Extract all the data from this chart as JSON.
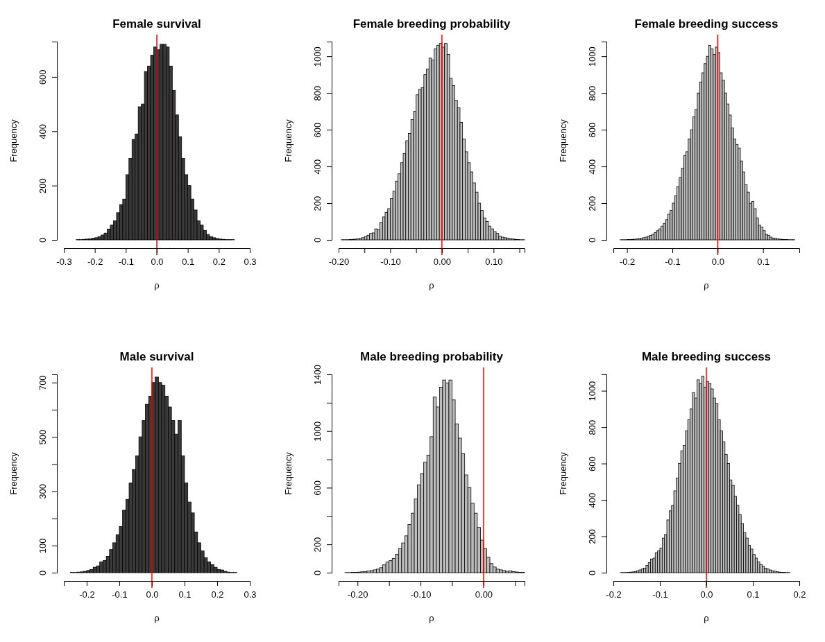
{
  "chart_data": [
    {
      "type": "histogram",
      "title": "Female survival",
      "xlabel": "ρ",
      "ylabel": "Frequency",
      "color": "#3a3a3a",
      "bins": [
        -0.28,
        -0.27,
        -0.26,
        -0.25,
        -0.24,
        -0.23,
        -0.22,
        -0.21,
        -0.2,
        -0.19,
        -0.18,
        -0.17,
        -0.16,
        -0.15,
        -0.14,
        -0.13,
        -0.12,
        -0.11,
        -0.1,
        -0.09,
        -0.08,
        -0.07,
        -0.06,
        -0.05,
        -0.04,
        -0.03,
        -0.02,
        -0.01,
        0,
        0.01,
        0.02,
        0.03,
        0.04,
        0.05,
        0.06,
        0.07,
        0.08,
        0.09,
        0.1,
        0.11,
        0.12,
        0.13,
        0.14,
        0.15,
        0.16,
        0.17,
        0.18,
        0.19,
        0.2,
        0.21,
        0.22,
        0.23,
        0.24,
        0.25,
        0.26,
        0.27,
        0.28,
        0.29,
        0.3
      ],
      "values": [
        0,
        0,
        1,
        1,
        2,
        3,
        4,
        6,
        8,
        12,
        18,
        25,
        40,
        55,
        70,
        100,
        130,
        150,
        240,
        300,
        370,
        390,
        490,
        500,
        620,
        640,
        680,
        710,
        700,
        720,
        720,
        710,
        640,
        550,
        460,
        380,
        300,
        240,
        200,
        150,
        110,
        70,
        55,
        35,
        20,
        12,
        8,
        5,
        3,
        2,
        1,
        1,
        1,
        0,
        0,
        0,
        0,
        0
      ],
      "xlim": [
        -0.3,
        0.3
      ],
      "xticks": [
        {
          "value": -0.3,
          "label": "-0.3"
        },
        {
          "value": -0.2,
          "label": "-0.2"
        },
        {
          "value": -0.1,
          "label": "-0.1"
        },
        {
          "value": 0,
          "label": "0.0"
        },
        {
          "value": 0.1,
          "label": "0.1"
        },
        {
          "value": 0.2,
          "label": "0.2"
        },
        {
          "value": 0.3,
          "label": "0.3"
        }
      ],
      "ylim": [
        0,
        730
      ],
      "yticks": [
        0,
        200,
        400,
        600
      ],
      "ref_lines": [
        {
          "axis": "x",
          "value": 0,
          "color": "#ff0000"
        }
      ]
    },
    {
      "type": "histogram",
      "title": "Female breeding probability",
      "xlabel": "ρ",
      "ylabel": "Frequency",
      "color": "#bdbdbd",
      "bins": [
        -0.195,
        -0.19,
        -0.185,
        -0.18,
        -0.175,
        -0.17,
        -0.165,
        -0.16,
        -0.155,
        -0.15,
        -0.145,
        -0.14,
        -0.135,
        -0.13,
        -0.125,
        -0.12,
        -0.115,
        -0.11,
        -0.105,
        -0.1,
        -0.095,
        -0.09,
        -0.085,
        -0.08,
        -0.075,
        -0.07,
        -0.065,
        -0.06,
        -0.055,
        -0.05,
        -0.045,
        -0.04,
        -0.035,
        -0.03,
        -0.025,
        -0.02,
        -0.015,
        -0.01,
        -0.005,
        0,
        0.005,
        0.01,
        0.015,
        0.02,
        0.025,
        0.03,
        0.035,
        0.04,
        0.045,
        0.05,
        0.055,
        0.06,
        0.065,
        0.07,
        0.075,
        0.08,
        0.085,
        0.09,
        0.095,
        0.1,
        0.105,
        0.11,
        0.115,
        0.12,
        0.125,
        0.13,
        0.135,
        0.14,
        0.145,
        0.15,
        0.155,
        0.16
      ],
      "values": [
        1,
        1,
        1,
        2,
        3,
        4,
        6,
        8,
        12,
        18,
        25,
        35,
        38,
        60,
        55,
        95,
        125,
        150,
        170,
        225,
        265,
        320,
        360,
        420,
        470,
        540,
        580,
        655,
        700,
        790,
        820,
        830,
        900,
        930,
        990,
        980,
        1040,
        1060,
        1070,
        1050,
        1070,
        1010,
        880,
        840,
        760,
        720,
        640,
        550,
        480,
        420,
        370,
        310,
        260,
        200,
        160,
        120,
        100,
        75,
        60,
        45,
        35,
        20,
        15,
        12,
        10,
        7,
        5,
        3,
        2,
        1,
        1
      ],
      "xlim": [
        -0.2,
        0.16
      ],
      "xticks": [
        {
          "value": -0.2,
          "label": "-0.20"
        },
        {
          "value": -0.15,
          "label": null
        },
        {
          "value": -0.1,
          "label": "-0.10"
        },
        {
          "value": -0.05,
          "label": null
        },
        {
          "value": 0,
          "label": "0.00"
        },
        {
          "value": 0.05,
          "label": null
        },
        {
          "value": 0.1,
          "label": "0.10"
        },
        {
          "value": 0.15,
          "label": null
        }
      ],
      "ylim": [
        0,
        1080
      ],
      "yticks": [
        0,
        200,
        400,
        600,
        800,
        1000
      ],
      "ref_lines": [
        {
          "axis": "x",
          "value": 0,
          "color": "#ff0000"
        }
      ]
    },
    {
      "type": "histogram",
      "title": "Female breeding success",
      "xlabel": "ρ",
      "ylabel": "Frequency",
      "color": "#bdbdbd",
      "bins": [
        -0.22,
        -0.215,
        -0.21,
        -0.205,
        -0.2,
        -0.195,
        -0.19,
        -0.185,
        -0.18,
        -0.175,
        -0.17,
        -0.165,
        -0.16,
        -0.155,
        -0.15,
        -0.145,
        -0.14,
        -0.135,
        -0.13,
        -0.125,
        -0.12,
        -0.115,
        -0.11,
        -0.105,
        -0.1,
        -0.095,
        -0.09,
        -0.085,
        -0.08,
        -0.075,
        -0.07,
        -0.065,
        -0.06,
        -0.055,
        -0.05,
        -0.045,
        -0.04,
        -0.035,
        -0.03,
        -0.025,
        -0.02,
        -0.015,
        -0.01,
        -0.005,
        0,
        0.005,
        0.01,
        0.015,
        0.02,
        0.025,
        0.03,
        0.035,
        0.04,
        0.045,
        0.05,
        0.055,
        0.06,
        0.065,
        0.07,
        0.075,
        0.08,
        0.085,
        0.09,
        0.095,
        0.1,
        0.105,
        0.11,
        0.115,
        0.12,
        0.125,
        0.13,
        0.135,
        0.14,
        0.145,
        0.15,
        0.155,
        0.16,
        0.165,
        0.17,
        0.175,
        0.18
      ],
      "values": [
        0,
        1,
        1,
        1,
        2,
        2,
        3,
        4,
        5,
        7,
        9,
        12,
        15,
        20,
        25,
        30,
        40,
        50,
        60,
        75,
        90,
        110,
        140,
        160,
        200,
        240,
        290,
        340,
        390,
        460,
        480,
        550,
        600,
        670,
        710,
        800,
        860,
        910,
        960,
        1000,
        1060,
        1040,
        1010,
        1050,
        1020,
        910,
        870,
        800,
        740,
        680,
        610,
        550,
        520,
        500,
        430,
        370,
        300,
        260,
        200,
        210,
        170,
        120,
        80,
        70,
        50,
        30,
        25,
        15,
        10,
        8,
        6,
        4,
        3,
        2,
        2,
        1,
        1,
        1,
        0,
        0
      ],
      "xlim": [
        -0.23,
        0.18
      ],
      "xticks": [
        {
          "value": -0.2,
          "label": "-0.2"
        },
        {
          "value": -0.1,
          "label": "-0.1"
        },
        {
          "value": 0,
          "label": "0.0"
        },
        {
          "value": 0.1,
          "label": "0.1"
        }
      ],
      "ylim": [
        0,
        1080
      ],
      "yticks": [
        0,
        200,
        400,
        600,
        800,
        1000
      ],
      "ref_lines": [
        {
          "axis": "x",
          "value": 0,
          "color": "#ff0000"
        }
      ]
    },
    {
      "type": "histogram",
      "title": "Male survival",
      "xlabel": "ρ",
      "ylabel": "Frequency",
      "color": "#3a3a3a",
      "bins": [
        -0.27,
        -0.26,
        -0.25,
        -0.24,
        -0.23,
        -0.22,
        -0.21,
        -0.2,
        -0.19,
        -0.18,
        -0.17,
        -0.16,
        -0.15,
        -0.14,
        -0.13,
        -0.12,
        -0.11,
        -0.1,
        -0.09,
        -0.08,
        -0.07,
        -0.06,
        -0.05,
        -0.04,
        -0.03,
        -0.02,
        -0.01,
        0,
        0.01,
        0.02,
        0.03,
        0.04,
        0.05,
        0.06,
        0.07,
        0.08,
        0.09,
        0.1,
        0.11,
        0.12,
        0.13,
        0.14,
        0.15,
        0.16,
        0.17,
        0.18,
        0.19,
        0.2,
        0.21,
        0.22,
        0.23,
        0.24,
        0.25,
        0.26,
        0.27,
        0.28,
        0.29
      ],
      "values": [
        0,
        0,
        1,
        1,
        2,
        3,
        5,
        8,
        12,
        20,
        25,
        40,
        45,
        60,
        85,
        110,
        140,
        170,
        230,
        270,
        330,
        380,
        430,
        500,
        560,
        620,
        650,
        700,
        720,
        700,
        690,
        650,
        610,
        560,
        510,
        560,
        430,
        330,
        260,
        220,
        150,
        110,
        80,
        55,
        40,
        30,
        20,
        12,
        10,
        5,
        2,
        1,
        1,
        0,
        0,
        0
      ],
      "xlim": [
        -0.27,
        0.3
      ],
      "xticks": [
        {
          "value": -0.2,
          "label": "-0.2"
        },
        {
          "value": -0.1,
          "label": "-0.1"
        },
        {
          "value": 0,
          "label": "0.0"
        },
        {
          "value": 0.1,
          "label": "0.1"
        },
        {
          "value": 0.2,
          "label": "0.2"
        },
        {
          "value": 0.3,
          "label": "0.3"
        }
      ],
      "ylim": [
        0,
        730
      ],
      "yticks": [
        0,
        100,
        {
          "value": 200,
          "label": null
        },
        300,
        {
          "value": 400,
          "label": null
        },
        500,
        {
          "value": 600,
          "label": null
        },
        700
      ],
      "ref_lines": [
        {
          "axis": "x",
          "value": 0,
          "color": "#ff0000"
        }
      ]
    },
    {
      "type": "histogram",
      "title": "Male breeding probability",
      "xlabel": "ρ",
      "ylabel": "Frequency",
      "color": "#bdbdbd",
      "bins": [
        -0.23,
        -0.225,
        -0.22,
        -0.215,
        -0.21,
        -0.205,
        -0.2,
        -0.195,
        -0.19,
        -0.185,
        -0.18,
        -0.175,
        -0.17,
        -0.165,
        -0.16,
        -0.155,
        -0.15,
        -0.145,
        -0.14,
        -0.135,
        -0.13,
        -0.125,
        -0.12,
        -0.115,
        -0.11,
        -0.105,
        -0.1,
        -0.095,
        -0.09,
        -0.085,
        -0.08,
        -0.075,
        -0.07,
        -0.065,
        -0.06,
        -0.055,
        -0.05,
        -0.045,
        -0.04,
        -0.035,
        -0.03,
        -0.025,
        -0.02,
        -0.015,
        -0.01,
        -0.005,
        0,
        0.005,
        0.01,
        0.015,
        0.02,
        0.025,
        0.03,
        0.035,
        0.04,
        0.045,
        0.05,
        0.055,
        0.06,
        0.065
      ],
      "values": [
        0,
        0,
        1,
        1,
        2,
        3,
        4,
        6,
        8,
        12,
        15,
        20,
        25,
        35,
        55,
        75,
        85,
        100,
        130,
        170,
        210,
        260,
        340,
        420,
        520,
        620,
        700,
        780,
        830,
        960,
        1240,
        1170,
        1310,
        1360,
        1340,
        1360,
        1220,
        1050,
        950,
        840,
        690,
        600,
        490,
        420,
        320,
        230,
        170,
        110,
        65,
        40,
        25,
        20,
        15,
        10,
        12,
        8,
        5,
        3,
        2
      ],
      "xlim": [
        -0.23,
        0.065
      ],
      "xticks": [
        {
          "value": -0.2,
          "label": "-0.20"
        },
        {
          "value": -0.15,
          "label": null
        },
        {
          "value": -0.1,
          "label": "-0.10"
        },
        {
          "value": -0.05,
          "label": null
        },
        {
          "value": 0,
          "label": "0.00"
        },
        {
          "value": 0.05,
          "label": null
        }
      ],
      "ylim": [
        0,
        1400
      ],
      "yticks": [
        0,
        200,
        {
          "value": 400,
          "label": null
        },
        600,
        {
          "value": 800,
          "label": null
        },
        1000,
        {
          "value": 1200,
          "label": null
        },
        1400
      ],
      "ref_lines": [
        {
          "axis": "x",
          "value": 0,
          "color": "#ff0000"
        }
      ]
    },
    {
      "type": "histogram",
      "title": "Male breeding success",
      "xlabel": "ρ",
      "ylabel": "Frequency",
      "color": "#bdbdbd",
      "bins": [
        -0.195,
        -0.19,
        -0.185,
        -0.18,
        -0.175,
        -0.17,
        -0.165,
        -0.16,
        -0.155,
        -0.15,
        -0.145,
        -0.14,
        -0.135,
        -0.13,
        -0.125,
        -0.12,
        -0.115,
        -0.11,
        -0.105,
        -0.1,
        -0.095,
        -0.09,
        -0.085,
        -0.08,
        -0.075,
        -0.07,
        -0.065,
        -0.06,
        -0.055,
        -0.05,
        -0.045,
        -0.04,
        -0.035,
        -0.03,
        -0.025,
        -0.02,
        -0.015,
        -0.01,
        -0.005,
        0,
        0.005,
        0.01,
        0.015,
        0.02,
        0.025,
        0.03,
        0.035,
        0.04,
        0.045,
        0.05,
        0.055,
        0.06,
        0.065,
        0.07,
        0.075,
        0.08,
        0.085,
        0.09,
        0.095,
        0.1,
        0.105,
        0.11,
        0.115,
        0.12,
        0.125,
        0.13,
        0.135,
        0.14,
        0.145,
        0.15,
        0.155,
        0.16,
        0.165,
        0.17,
        0.175,
        0.18,
        0.185
      ],
      "values": [
        0,
        0,
        1,
        1,
        1,
        2,
        3,
        4,
        6,
        10,
        15,
        20,
        25,
        40,
        55,
        75,
        80,
        110,
        120,
        135,
        190,
        210,
        290,
        340,
        370,
        450,
        520,
        600,
        670,
        700,
        780,
        840,
        900,
        990,
        960,
        1060,
        1040,
        1080,
        1020,
        1050,
        1040,
        1010,
        960,
        930,
        840,
        780,
        720,
        650,
        600,
        510,
        480,
        420,
        370,
        320,
        270,
        220,
        190,
        150,
        130,
        100,
        80,
        60,
        45,
        35,
        25,
        20,
        15,
        10,
        8,
        5,
        3,
        2,
        2,
        1,
        1,
        0
      ],
      "xlim": [
        -0.2,
        0.2
      ],
      "xticks": [
        {
          "value": -0.2,
          "label": "-0.2"
        },
        {
          "value": -0.1,
          "label": "-0.1"
        },
        {
          "value": 0,
          "label": "0.0"
        },
        {
          "value": 0.1,
          "label": "0.1"
        },
        {
          "value": 0.2,
          "label": "0.2"
        }
      ],
      "ylim": [
        0,
        1090
      ],
      "yticks": [
        0,
        200,
        400,
        600,
        800,
        1000
      ],
      "ref_lines": [
        {
          "axis": "x",
          "value": 0,
          "color": "#ff0000"
        }
      ]
    }
  ]
}
